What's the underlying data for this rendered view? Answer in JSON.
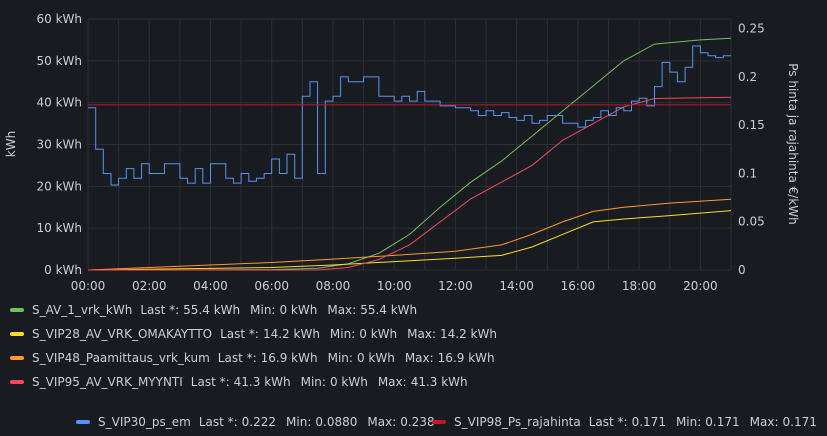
{
  "chart_data": {
    "type": "line",
    "x_ticks": [
      "00:00",
      "02:00",
      "04:00",
      "06:00",
      "08:00",
      "10:00",
      "12:00",
      "14:00",
      "16:00",
      "18:00",
      "20:00"
    ],
    "x_range_hours": [
      0,
      21
    ],
    "y_left": {
      "label": "kWh",
      "range": [
        0,
        60
      ],
      "ticks": [
        "0 kWh",
        "10 kWh",
        "20 kWh",
        "30 kWh",
        "40 kWh",
        "50 kWh",
        "60 kWh"
      ]
    },
    "y_right": {
      "label": "Ps hinta ja rajahinta €/kWh",
      "range": [
        0,
        0.26
      ],
      "ticks": [
        "0",
        "0.05",
        "0.1",
        "0.15",
        "0.2",
        "0.25"
      ]
    },
    "grid": true,
    "legend_placement": "bottom",
    "series": [
      {
        "name": "S_AV_1_vrk_kWh",
        "color": "#73bf69",
        "axis": "left",
        "style": "line",
        "points": [
          [
            0,
            0
          ],
          [
            3,
            0
          ],
          [
            6,
            0.1
          ],
          [
            7.5,
            0.4
          ],
          [
            8.5,
            1.5
          ],
          [
            9.5,
            4
          ],
          [
            10.5,
            8.5
          ],
          [
            11.5,
            15
          ],
          [
            12.5,
            21
          ],
          [
            13.5,
            26
          ],
          [
            14.5,
            32
          ],
          [
            15.5,
            38
          ],
          [
            16.5,
            44
          ],
          [
            17.5,
            50
          ],
          [
            18.5,
            54
          ],
          [
            20,
            55
          ],
          [
            21,
            55.4
          ]
        ],
        "legend": {
          "last": "55.4 kWh",
          "min": "0 kWh",
          "max": "55.4 kWh"
        }
      },
      {
        "name": "S_VIP28_AV_VRK_OMAKAYTTO",
        "color": "#fade2a",
        "axis": "left",
        "style": "line",
        "points": [
          [
            0,
            0
          ],
          [
            6,
            0.6
          ],
          [
            8,
            1.2
          ],
          [
            10,
            2
          ],
          [
            12,
            2.8
          ],
          [
            13.5,
            3.5
          ],
          [
            14.5,
            5.5
          ],
          [
            15.5,
            8.5
          ],
          [
            16.5,
            11.5
          ],
          [
            17.5,
            12.2
          ],
          [
            19,
            13
          ],
          [
            21,
            14.2
          ]
        ],
        "legend": {
          "last": "14.2 kWh",
          "min": "0 kWh",
          "max": "14.2 kWh"
        }
      },
      {
        "name": "S_VIP48_Paamittaus_vrk_kum",
        "color": "#ff9830",
        "axis": "left",
        "style": "line",
        "points": [
          [
            0,
            0
          ],
          [
            2,
            0.6
          ],
          [
            4,
            1.2
          ],
          [
            6,
            1.8
          ],
          [
            8,
            2.6
          ],
          [
            10,
            3.5
          ],
          [
            12,
            4.5
          ],
          [
            13.5,
            6
          ],
          [
            14.5,
            8.5
          ],
          [
            15.5,
            11.5
          ],
          [
            16.5,
            14
          ],
          [
            17.5,
            15
          ],
          [
            19,
            16
          ],
          [
            21,
            16.9
          ]
        ],
        "legend": {
          "last": "16.9 kWh",
          "min": "0 kWh",
          "max": "16.9 kWh"
        }
      },
      {
        "name": "S_VIP95_AV_VRK_MYYNTI",
        "color": "#f2495c",
        "axis": "left",
        "style": "line",
        "points": [
          [
            0,
            0
          ],
          [
            7.5,
            0
          ],
          [
            8.5,
            0.6
          ],
          [
            9.5,
            2.5
          ],
          [
            10.5,
            6
          ],
          [
            11.5,
            11.5
          ],
          [
            12.5,
            17
          ],
          [
            13.5,
            21
          ],
          [
            14.5,
            25
          ],
          [
            15.5,
            31
          ],
          [
            16.5,
            35
          ],
          [
            17.5,
            39
          ],
          [
            18.5,
            41
          ],
          [
            21,
            41.3
          ]
        ],
        "legend": {
          "last": "41.3 kWh",
          "min": "0 kWh",
          "max": "41.3 kWh"
        }
      },
      {
        "name": "S_VIP30_ps_em",
        "color": "#5794f2",
        "axis": "right",
        "style": "step",
        "points": [
          [
            0,
            0.168
          ],
          [
            0.25,
            0.125
          ],
          [
            0.5,
            0.1
          ],
          [
            0.75,
            0.088
          ],
          [
            1,
            0.095
          ],
          [
            1.25,
            0.105
          ],
          [
            1.5,
            0.095
          ],
          [
            1.75,
            0.11
          ],
          [
            2,
            0.1
          ],
          [
            2.5,
            0.11
          ],
          [
            3,
            0.095
          ],
          [
            3.25,
            0.09
          ],
          [
            3.5,
            0.105
          ],
          [
            3.75,
            0.09
          ],
          [
            4,
            0.11
          ],
          [
            4.5,
            0.095
          ],
          [
            4.75,
            0.09
          ],
          [
            5,
            0.1
          ],
          [
            5.25,
            0.092
          ],
          [
            5.5,
            0.095
          ],
          [
            5.75,
            0.1
          ],
          [
            6,
            0.115
          ],
          [
            6.25,
            0.1
          ],
          [
            6.5,
            0.12
          ],
          [
            6.75,
            0.095
          ],
          [
            7,
            0.18
          ],
          [
            7.25,
            0.195
          ],
          [
            7.5,
            0.1
          ],
          [
            7.75,
            0.175
          ],
          [
            8,
            0.18
          ],
          [
            8.25,
            0.2
          ],
          [
            8.5,
            0.195
          ],
          [
            9,
            0.2
          ],
          [
            9.5,
            0.18
          ],
          [
            10,
            0.175
          ],
          [
            10.25,
            0.18
          ],
          [
            10.5,
            0.175
          ],
          [
            10.75,
            0.185
          ],
          [
            11,
            0.175
          ],
          [
            11.5,
            0.17
          ],
          [
            12,
            0.168
          ],
          [
            12.5,
            0.165
          ],
          [
            12.75,
            0.16
          ],
          [
            13,
            0.165
          ],
          [
            13.25,
            0.16
          ],
          [
            13.5,
            0.163
          ],
          [
            13.75,
            0.158
          ],
          [
            14,
            0.155
          ],
          [
            14.25,
            0.16
          ],
          [
            14.5,
            0.152
          ],
          [
            14.75,
            0.155
          ],
          [
            15,
            0.16
          ],
          [
            15.5,
            0.152
          ],
          [
            16,
            0.148
          ],
          [
            16.25,
            0.155
          ],
          [
            16.5,
            0.158
          ],
          [
            16.75,
            0.165
          ],
          [
            17,
            0.16
          ],
          [
            17.25,
            0.168
          ],
          [
            17.5,
            0.165
          ],
          [
            17.75,
            0.175
          ],
          [
            18,
            0.178
          ],
          [
            18.25,
            0.17
          ],
          [
            18.5,
            0.19
          ],
          [
            18.75,
            0.215
          ],
          [
            19,
            0.205
          ],
          [
            19.25,
            0.195
          ],
          [
            19.5,
            0.21
          ],
          [
            19.75,
            0.232
          ],
          [
            20,
            0.225
          ],
          [
            20.25,
            0.222
          ],
          [
            20.5,
            0.22
          ],
          [
            20.75,
            0.222
          ],
          [
            21,
            0.222
          ]
        ],
        "legend": {
          "last": "0.222",
          "min": "0.0880",
          "max": "0.238"
        }
      },
      {
        "name": "S_VIP98_Ps_rajahinta",
        "color": "#c4162a",
        "axis": "right",
        "style": "line",
        "points": [
          [
            0,
            0.171
          ],
          [
            21,
            0.171
          ]
        ],
        "legend": {
          "last": "0.171",
          "min": "0.171",
          "max": "0.171"
        }
      }
    ]
  },
  "legend_labels": {
    "last": "Last *:",
    "min": "Min:",
    "max": "Max:"
  }
}
